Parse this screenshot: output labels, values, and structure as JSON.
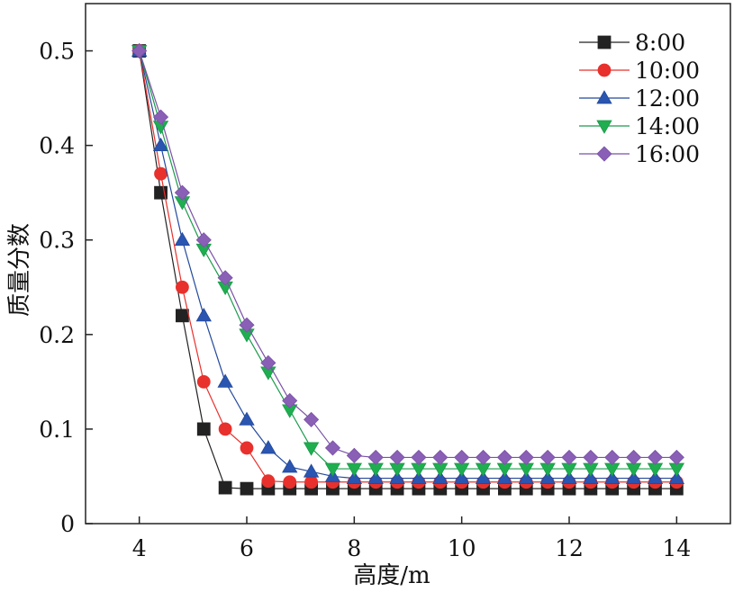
{
  "chart_data": {
    "type": "line",
    "xlabel": "高度/m",
    "ylabel": "质量分数",
    "xlim": [
      3,
      15
    ],
    "ylim": [
      0,
      0.55
    ],
    "xticks": [
      "4",
      "6",
      "8",
      "10",
      "12",
      "14"
    ],
    "yticks": [
      "0",
      "0.1",
      "0.2",
      "0.3",
      "0.4",
      "0.5"
    ],
    "legend_position": "top-right",
    "grid": false,
    "series": [
      {
        "name": "8:00",
        "marker": "square",
        "color": "#222222",
        "fill": "#222222",
        "points": [
          [
            4.0,
            0.5
          ],
          [
            4.4,
            0.35
          ],
          [
            4.8,
            0.22
          ],
          [
            5.2,
            0.1
          ],
          [
            5.6,
            0.038
          ],
          [
            6.0,
            0.037
          ],
          [
            6.4,
            0.037
          ],
          [
            6.8,
            0.037
          ],
          [
            7.2,
            0.037
          ],
          [
            7.6,
            0.037
          ],
          [
            8.0,
            0.037
          ],
          [
            8.4,
            0.037
          ],
          [
            8.8,
            0.037
          ],
          [
            9.2,
            0.037
          ],
          [
            9.6,
            0.037
          ],
          [
            10.0,
            0.037
          ],
          [
            10.4,
            0.037
          ],
          [
            10.8,
            0.037
          ],
          [
            11.2,
            0.037
          ],
          [
            11.6,
            0.037
          ],
          [
            12.0,
            0.037
          ],
          [
            12.4,
            0.037
          ],
          [
            12.8,
            0.037
          ],
          [
            13.2,
            0.037
          ],
          [
            13.6,
            0.037
          ],
          [
            14.0,
            0.037
          ]
        ]
      },
      {
        "name": "10:00",
        "marker": "circle",
        "color": "#e8302c",
        "fill": "#e8302c",
        "points": [
          [
            4.0,
            0.5
          ],
          [
            4.4,
            0.37
          ],
          [
            4.8,
            0.25
          ],
          [
            5.2,
            0.15
          ],
          [
            5.6,
            0.1
          ],
          [
            6.0,
            0.08
          ],
          [
            6.4,
            0.045
          ],
          [
            6.8,
            0.044
          ],
          [
            7.2,
            0.044
          ],
          [
            7.6,
            0.044
          ],
          [
            8.0,
            0.044
          ],
          [
            8.4,
            0.044
          ],
          [
            8.8,
            0.044
          ],
          [
            9.2,
            0.044
          ],
          [
            9.6,
            0.044
          ],
          [
            10.0,
            0.044
          ],
          [
            10.4,
            0.044
          ],
          [
            10.8,
            0.044
          ],
          [
            11.2,
            0.044
          ],
          [
            11.6,
            0.044
          ],
          [
            12.0,
            0.044
          ],
          [
            12.4,
            0.044
          ],
          [
            12.8,
            0.044
          ],
          [
            13.2,
            0.044
          ],
          [
            13.6,
            0.044
          ],
          [
            14.0,
            0.044
          ]
        ]
      },
      {
        "name": "12:00",
        "marker": "triangle-up",
        "color": "#23499c",
        "fill": "#2a55b0",
        "points": [
          [
            4.0,
            0.5
          ],
          [
            4.4,
            0.4
          ],
          [
            4.8,
            0.3
          ],
          [
            5.2,
            0.22
          ],
          [
            5.6,
            0.15
          ],
          [
            6.0,
            0.11
          ],
          [
            6.4,
            0.08
          ],
          [
            6.8,
            0.06
          ],
          [
            7.2,
            0.055
          ],
          [
            7.6,
            0.05
          ],
          [
            8.0,
            0.048
          ],
          [
            8.4,
            0.048
          ],
          [
            8.8,
            0.048
          ],
          [
            9.2,
            0.048
          ],
          [
            9.6,
            0.048
          ],
          [
            10.0,
            0.048
          ],
          [
            10.4,
            0.048
          ],
          [
            10.8,
            0.048
          ],
          [
            11.2,
            0.048
          ],
          [
            11.6,
            0.048
          ],
          [
            12.0,
            0.048
          ],
          [
            12.4,
            0.048
          ],
          [
            12.8,
            0.048
          ],
          [
            13.2,
            0.048
          ],
          [
            13.6,
            0.048
          ],
          [
            14.0,
            0.048
          ]
        ]
      },
      {
        "name": "14:00",
        "marker": "triangle-down",
        "color": "#1a9a4a",
        "fill": "#1fae4f",
        "points": [
          [
            4.0,
            0.5
          ],
          [
            4.4,
            0.42
          ],
          [
            4.8,
            0.34
          ],
          [
            5.2,
            0.29
          ],
          [
            5.6,
            0.25
          ],
          [
            6.0,
            0.2
          ],
          [
            6.4,
            0.16
          ],
          [
            6.8,
            0.12
          ],
          [
            7.2,
            0.08
          ],
          [
            7.6,
            0.058
          ],
          [
            8.0,
            0.058
          ],
          [
            8.4,
            0.058
          ],
          [
            8.8,
            0.058
          ],
          [
            9.2,
            0.058
          ],
          [
            9.6,
            0.058
          ],
          [
            10.0,
            0.058
          ],
          [
            10.4,
            0.058
          ],
          [
            10.8,
            0.058
          ],
          [
            11.2,
            0.058
          ],
          [
            11.6,
            0.058
          ],
          [
            12.0,
            0.058
          ],
          [
            12.4,
            0.058
          ],
          [
            12.8,
            0.058
          ],
          [
            13.2,
            0.058
          ],
          [
            13.6,
            0.058
          ],
          [
            14.0,
            0.058
          ]
        ]
      },
      {
        "name": "16:00",
        "marker": "diamond",
        "color": "#7a52a6",
        "fill": "#8a5fb6",
        "points": [
          [
            4.0,
            0.5
          ],
          [
            4.4,
            0.43
          ],
          [
            4.8,
            0.35
          ],
          [
            5.2,
            0.3
          ],
          [
            5.6,
            0.26
          ],
          [
            6.0,
            0.21
          ],
          [
            6.4,
            0.17
          ],
          [
            6.8,
            0.13
          ],
          [
            7.2,
            0.11
          ],
          [
            7.6,
            0.08
          ],
          [
            8.0,
            0.072
          ],
          [
            8.4,
            0.07
          ],
          [
            8.8,
            0.07
          ],
          [
            9.2,
            0.07
          ],
          [
            9.6,
            0.07
          ],
          [
            10.0,
            0.07
          ],
          [
            10.4,
            0.07
          ],
          [
            10.8,
            0.07
          ],
          [
            11.2,
            0.07
          ],
          [
            11.6,
            0.07
          ],
          [
            12.0,
            0.07
          ],
          [
            12.4,
            0.07
          ],
          [
            12.8,
            0.07
          ],
          [
            13.2,
            0.07
          ],
          [
            13.6,
            0.07
          ],
          [
            14.0,
            0.07
          ]
        ]
      }
    ]
  }
}
